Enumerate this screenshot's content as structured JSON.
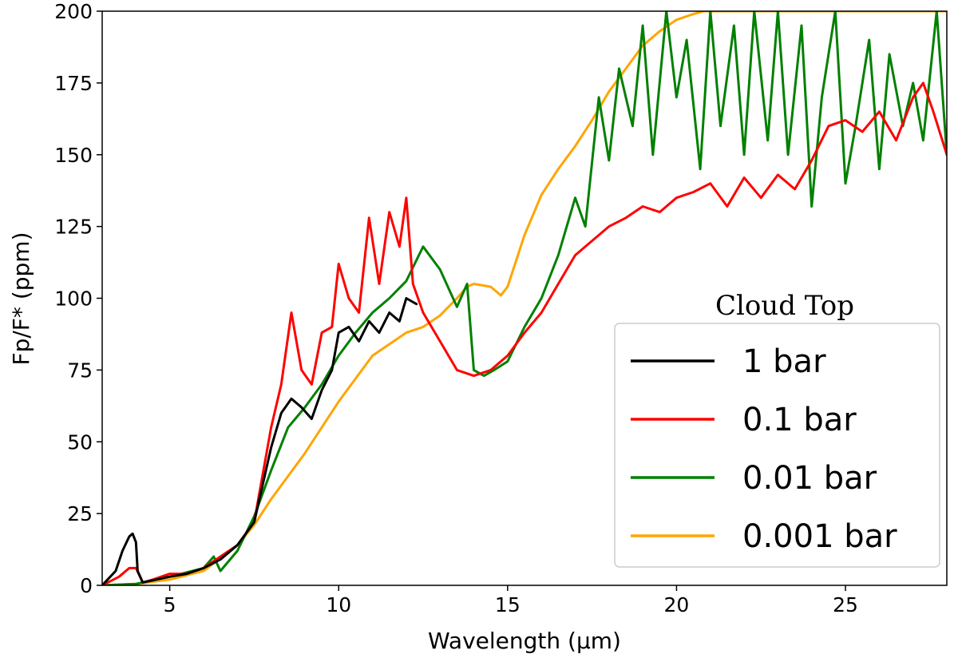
{
  "chart_data": {
    "type": "line",
    "title": "",
    "xlabel": "Wavelength (μm)",
    "ylabel": "Fp/F* (ppm)",
    "xlim": [
      3.0,
      28.0
    ],
    "ylim": [
      0,
      200
    ],
    "xticks": [
      5,
      10,
      15,
      20,
      25
    ],
    "yticks": [
      0,
      25,
      50,
      75,
      100,
      125,
      150,
      175,
      200
    ],
    "grid": false,
    "legend": {
      "title": "Cloud Top",
      "placement": "lower-right"
    },
    "series": [
      {
        "name": "0.001 bar",
        "color": "#ffa500",
        "x": [
          3.0,
          4.0,
          5.0,
          6.0,
          7.0,
          7.5,
          8.0,
          9.0,
          10.0,
          11.0,
          12.0,
          12.5,
          13.0,
          13.5,
          13.8,
          14.0,
          14.5,
          14.8,
          15.0,
          15.5,
          16.0,
          16.5,
          17.0,
          17.5,
          18.0,
          18.5,
          19.0,
          19.5,
          20.0,
          20.5,
          20.8,
          21.0,
          22.0,
          23.0,
          24.0,
          24.5,
          25.0,
          25.5,
          26.0,
          26.5,
          27.0,
          27.5,
          28.0
        ],
        "y": [
          0,
          0.5,
          2,
          5,
          14,
          21,
          30,
          46,
          64,
          80,
          88,
          90,
          94,
          100,
          104,
          105,
          104,
          101,
          104,
          122,
          136,
          145,
          153,
          162,
          172,
          180,
          188,
          193,
          197,
          199,
          200,
          200,
          200,
          200,
          200,
          200,
          200,
          200,
          200,
          200,
          200,
          200,
          200
        ]
      },
      {
        "name": "0.01 bar",
        "color": "#008000",
        "x": [
          3.0,
          4.0,
          5.0,
          6.0,
          6.3,
          6.5,
          7.0,
          7.5,
          8.0,
          8.5,
          9.0,
          9.5,
          10.0,
          10.5,
          11.0,
          11.5,
          12.0,
          12.5,
          13.0,
          13.5,
          13.8,
          14.0,
          14.3,
          14.6,
          15.0,
          15.5,
          16.0,
          16.5,
          17.0,
          17.3,
          17.7,
          18.0,
          18.3,
          18.7,
          19.0,
          19.3,
          19.7,
          20.0,
          20.3,
          20.7,
          21.0,
          21.3,
          21.7,
          22.0,
          22.3,
          22.7,
          23.0,
          23.3,
          23.7,
          24.0,
          24.3,
          24.7,
          25.0,
          25.3,
          25.7,
          26.0,
          26.3,
          26.7,
          27.0,
          27.3,
          27.7,
          28.0
        ],
        "y": [
          0,
          0.5,
          3,
          6,
          10,
          5,
          12,
          24,
          40,
          55,
          62,
          70,
          80,
          88,
          95,
          100,
          106,
          118,
          110,
          97,
          105,
          75,
          73,
          75,
          78,
          90,
          100,
          115,
          135,
          125,
          170,
          148,
          180,
          160,
          195,
          150,
          200,
          170,
          190,
          145,
          200,
          160,
          195,
          150,
          200,
          155,
          200,
          150,
          195,
          132,
          170,
          200,
          140,
          160,
          190,
          145,
          185,
          160,
          175,
          155,
          200,
          150
        ]
      },
      {
        "name": "0.1 bar",
        "color": "#ff0000",
        "x": [
          3.0,
          3.5,
          3.8,
          4.0,
          4.2,
          4.5,
          5.0,
          5.5,
          6.0,
          6.5,
          7.0,
          7.5,
          8.0,
          8.3,
          8.6,
          8.9,
          9.2,
          9.5,
          9.8,
          10.0,
          10.3,
          10.6,
          10.9,
          11.2,
          11.5,
          11.8,
          12.0,
          12.2,
          12.5,
          13.0,
          13.5,
          14.0,
          14.5,
          15.0,
          15.5,
          16.0,
          16.5,
          17.0,
          17.5,
          18.0,
          18.5,
          19.0,
          19.5,
          20.0,
          20.5,
          21.0,
          21.5,
          22.0,
          22.5,
          23.0,
          23.5,
          24.0,
          24.5,
          25.0,
          25.5,
          26.0,
          26.5,
          27.0,
          27.3,
          27.6,
          28.0
        ],
        "y": [
          0,
          3,
          6,
          6,
          1,
          2,
          4,
          4,
          6,
          10,
          14,
          22,
          55,
          70,
          95,
          75,
          70,
          88,
          90,
          112,
          100,
          95,
          128,
          105,
          130,
          118,
          135,
          105,
          95,
          85,
          75,
          73,
          75,
          80,
          88,
          95,
          105,
          115,
          120,
          125,
          128,
          132,
          130,
          135,
          137,
          140,
          132,
          142,
          135,
          143,
          138,
          148,
          160,
          162,
          158,
          165,
          155,
          170,
          175,
          165,
          150
        ]
      },
      {
        "name": "1 bar",
        "color": "#000000",
        "x": [
          3.0,
          3.4,
          3.6,
          3.8,
          3.9,
          4.0,
          4.05,
          4.2,
          4.6,
          5.0,
          5.5,
          6.0,
          6.5,
          7.0,
          7.5,
          8.0,
          8.3,
          8.6,
          8.9,
          9.2,
          9.5,
          9.8,
          10.0,
          10.3,
          10.6,
          10.9,
          11.2,
          11.5,
          11.8,
          12.0,
          12.3
        ],
        "y": [
          0,
          5,
          12,
          17,
          18,
          15,
          5,
          1,
          2,
          3,
          4,
          6,
          9,
          14,
          22,
          48,
          60,
          65,
          62,
          58,
          68,
          75,
          88,
          90,
          85,
          92,
          88,
          95,
          92,
          100,
          98
        ]
      }
    ]
  }
}
